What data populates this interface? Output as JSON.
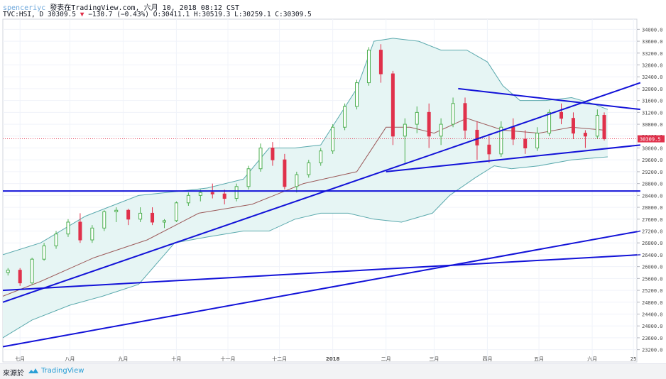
{
  "header": {
    "author": "spenceriyc",
    "published": "發表在TradingView.com, 六月 10, 2018 08:12 CST",
    "symbol": "TVC:HSI, D",
    "last": "30309.5",
    "change": "−130.7 (−0.43%)",
    "ohlc": "O:30411.1 H:30519.3 L:30259.1 C:30309.5"
  },
  "footer": {
    "source_label": "來源於",
    "brand": "TradingView"
  },
  "colors": {
    "up": "#4caf50",
    "down": "#e0314b",
    "trendline": "#1212d8",
    "bollinger": "#5aa9ad",
    "bollinger_fill": "#e6f5f4",
    "basis": "#9c5b5b"
  },
  "chart_data": {
    "type": "candlestick",
    "price_axis": {
      "min": 23000,
      "max": 34200,
      "ticks": [
        23200,
        23600,
        24000,
        24400,
        24800,
        25200,
        25600,
        26000,
        26400,
        26800,
        27200,
        27600,
        28000,
        28400,
        28800,
        29200,
        29600,
        30000,
        30400,
        30800,
        31200,
        31600,
        32000,
        32400,
        32800,
        33200,
        33600,
        34000
      ],
      "tick_labels": [
        "23200.0",
        "23600.0",
        "24000.0",
        "24400.0",
        "24800.0",
        "25200.0",
        "25600.0",
        "26000.0",
        "26400.0",
        "26800.0",
        "27200.0",
        "27600.0",
        "28000.0",
        "28400.0",
        "28800.0",
        "29200.0",
        "29600.0",
        "30000.0",
        "30400.0",
        "30800.0",
        "31200.0",
        "31600.0",
        "32000.0",
        "32400.0",
        "32800.0",
        "33200.0",
        "33600.0",
        "34000.0"
      ],
      "current_price_label": "30309.5"
    },
    "time_axis": {
      "start": "2017-06-23",
      "end": "2018-06-27",
      "tick_dates": [
        "2017-07-03",
        "2017-08-01",
        "2017-09-01",
        "2017-10-02",
        "2017-11-01",
        "2017-12-01",
        "2018-01-01",
        "2018-02-01",
        "2018-03-01",
        "2018-04-01",
        "2018-05-01",
        "2018-06-01",
        "2018-06-25"
      ],
      "tick_labels": [
        "七月",
        "八月",
        "九月",
        "十月",
        "十一月",
        "十二月",
        "2018",
        "二月",
        "三月",
        "四月",
        "五月",
        "六月",
        "25"
      ]
    },
    "series": [
      {
        "kind": "ohlc",
        "points": [
          [
            "2017-06-26",
            25800,
            25950,
            25700,
            25880
          ],
          [
            "2017-07-03",
            25880,
            25950,
            25350,
            25450
          ],
          [
            "2017-07-10",
            25450,
            26300,
            25400,
            26250
          ],
          [
            "2017-07-17",
            26250,
            26800,
            26200,
            26700
          ],
          [
            "2017-07-24",
            26700,
            27200,
            26600,
            27100
          ],
          [
            "2017-07-31",
            27100,
            27600,
            27000,
            27500
          ],
          [
            "2017-08-07",
            27500,
            27800,
            26800,
            26900
          ],
          [
            "2017-08-14",
            26900,
            27400,
            26800,
            27300
          ],
          [
            "2017-08-21",
            27300,
            27900,
            27200,
            27850
          ],
          [
            "2017-08-28",
            27850,
            28000,
            27500,
            27900
          ],
          [
            "2017-09-04",
            27900,
            27950,
            27400,
            27600
          ],
          [
            "2017-09-11",
            27600,
            28000,
            27500,
            27800
          ],
          [
            "2017-09-18",
            27800,
            28000,
            27400,
            27500
          ],
          [
            "2017-09-25",
            27500,
            27600,
            27300,
            27550
          ],
          [
            "2017-10-02",
            27550,
            28200,
            27500,
            28150
          ],
          [
            "2017-10-09",
            28150,
            28500,
            28050,
            28400
          ],
          [
            "2017-10-16",
            28400,
            28600,
            28200,
            28500
          ],
          [
            "2017-10-23",
            28500,
            28800,
            28300,
            28450
          ],
          [
            "2017-10-30",
            28450,
            28600,
            28100,
            28300
          ],
          [
            "2017-11-06",
            28300,
            28800,
            28200,
            28700
          ],
          [
            "2017-11-13",
            28700,
            29400,
            28600,
            29300
          ],
          [
            "2017-11-20",
            29300,
            30150,
            29200,
            30000
          ],
          [
            "2017-11-27",
            30000,
            30200,
            29400,
            29600
          ],
          [
            "2017-12-04",
            29600,
            29800,
            28600,
            28700
          ],
          [
            "2017-12-11",
            28700,
            29200,
            28500,
            29100
          ],
          [
            "2017-12-18",
            29100,
            29600,
            29000,
            29500
          ],
          [
            "2017-12-25",
            29500,
            30000,
            29400,
            29900
          ],
          [
            "2018-01-01",
            29900,
            30800,
            29800,
            30700
          ],
          [
            "2018-01-08",
            30700,
            31500,
            30600,
            31400
          ],
          [
            "2018-01-15",
            31400,
            32300,
            31300,
            32200
          ],
          [
            "2018-01-22",
            32200,
            33400,
            32100,
            33300
          ],
          [
            "2018-01-29",
            33300,
            33500,
            32200,
            32500
          ],
          [
            "2018-02-05",
            32500,
            32600,
            30100,
            30400
          ],
          [
            "2018-02-12",
            30400,
            31000,
            29500,
            30800
          ],
          [
            "2018-02-19",
            30800,
            31400,
            30500,
            31200
          ],
          [
            "2018-02-26",
            31200,
            31500,
            30000,
            30400
          ],
          [
            "2018-03-05",
            30400,
            31000,
            30100,
            30800
          ],
          [
            "2018-03-12",
            30800,
            31700,
            30700,
            31500
          ],
          [
            "2018-03-19",
            31500,
            31700,
            30300,
            30600
          ],
          [
            "2018-03-26",
            30600,
            30900,
            29600,
            30100
          ],
          [
            "2018-04-02",
            30100,
            30400,
            29500,
            29800
          ],
          [
            "2018-04-09",
            29800,
            30900,
            29700,
            30700
          ],
          [
            "2018-04-16",
            30700,
            31000,
            30100,
            30300
          ],
          [
            "2018-04-23",
            30300,
            30600,
            29800,
            30000
          ],
          [
            "2018-04-30",
            30000,
            30700,
            29900,
            30500
          ],
          [
            "2018-05-07",
            30500,
            31300,
            30400,
            31200
          ],
          [
            "2018-05-14",
            31200,
            31500,
            30800,
            31000
          ],
          [
            "2018-05-21",
            31000,
            31200,
            30300,
            30500
          ],
          [
            "2018-05-28",
            30500,
            30600,
            30000,
            30400
          ],
          [
            "2018-06-04",
            30400,
            31300,
            30300,
            31100
          ],
          [
            "2018-06-08",
            31100,
            31200,
            30250,
            30309.5
          ]
        ]
      },
      {
        "kind": "bollinger_upper",
        "points": [
          [
            "2017-06-23",
            26400
          ],
          [
            "2017-07-15",
            26800
          ],
          [
            "2017-08-10",
            27700
          ],
          [
            "2017-09-10",
            28400
          ],
          [
            "2017-10-05",
            28550
          ],
          [
            "2017-10-20",
            28650
          ],
          [
            "2017-11-10",
            28950
          ],
          [
            "2017-11-25",
            30000
          ],
          [
            "2017-12-10",
            30000
          ],
          [
            "2017-12-25",
            30100
          ],
          [
            "2018-01-15",
            32000
          ],
          [
            "2018-01-25",
            33600
          ],
          [
            "2018-02-05",
            33700
          ],
          [
            "2018-02-20",
            33600
          ],
          [
            "2018-03-05",
            33300
          ],
          [
            "2018-03-20",
            33300
          ],
          [
            "2018-04-01",
            32900
          ],
          [
            "2018-04-10",
            32100
          ],
          [
            "2018-04-20",
            31600
          ],
          [
            "2018-05-05",
            31600
          ],
          [
            "2018-05-20",
            31700
          ],
          [
            "2018-06-01",
            31500
          ],
          [
            "2018-06-10",
            31300
          ]
        ]
      },
      {
        "kind": "bollinger_lower",
        "points": [
          [
            "2017-06-23",
            23600
          ],
          [
            "2017-07-10",
            24200
          ],
          [
            "2017-08-01",
            24700
          ],
          [
            "2017-08-20",
            25000
          ],
          [
            "2017-09-10",
            25400
          ],
          [
            "2017-10-01",
            26800
          ],
          [
            "2017-10-20",
            27000
          ],
          [
            "2017-11-10",
            27200
          ],
          [
            "2017-11-25",
            27200
          ],
          [
            "2017-12-10",
            27600
          ],
          [
            "2017-12-25",
            27800
          ],
          [
            "2018-01-10",
            27800
          ],
          [
            "2018-01-25",
            27600
          ],
          [
            "2018-02-10",
            27500
          ],
          [
            "2018-02-28",
            27800
          ],
          [
            "2018-03-10",
            28400
          ],
          [
            "2018-03-25",
            29000
          ],
          [
            "2018-04-05",
            29400
          ],
          [
            "2018-04-15",
            29300
          ],
          [
            "2018-05-01",
            29400
          ],
          [
            "2018-05-20",
            29600
          ],
          [
            "2018-06-10",
            29700
          ]
        ]
      },
      {
        "kind": "bollinger_basis",
        "points": [
          [
            "2017-06-23",
            25000
          ],
          [
            "2017-07-15",
            25500
          ],
          [
            "2017-08-15",
            26300
          ],
          [
            "2017-09-15",
            26900
          ],
          [
            "2017-10-15",
            27800
          ],
          [
            "2017-11-15",
            28100
          ],
          [
            "2017-12-15",
            28800
          ],
          [
            "2018-01-15",
            29200
          ],
          [
            "2018-02-01",
            30700
          ],
          [
            "2018-02-15",
            30700
          ],
          [
            "2018-03-01",
            30500
          ],
          [
            "2018-03-20",
            31000
          ],
          [
            "2018-04-10",
            30600
          ],
          [
            "2018-05-01",
            30500
          ],
          [
            "2018-05-20",
            30700
          ],
          [
            "2018-06-08",
            30600
          ]
        ]
      }
    ],
    "trendlines": [
      [
        [
          "2017-06-23",
          28550
        ],
        [
          "2018-06-29",
          28550
        ]
      ],
      [
        [
          "2017-06-23",
          25200
        ],
        [
          "2018-06-29",
          26400
        ]
      ],
      [
        [
          "2017-06-23",
          23300
        ],
        [
          "2018-06-29",
          27200
        ]
      ],
      [
        [
          "2017-06-23",
          24800
        ],
        [
          "2018-06-29",
          32200
        ]
      ],
      [
        [
          "2018-02-01",
          29200
        ],
        [
          "2018-06-29",
          30100
        ]
      ],
      [
        [
          "2018-03-15",
          32000
        ],
        [
          "2018-06-29",
          31300
        ]
      ]
    ]
  }
}
